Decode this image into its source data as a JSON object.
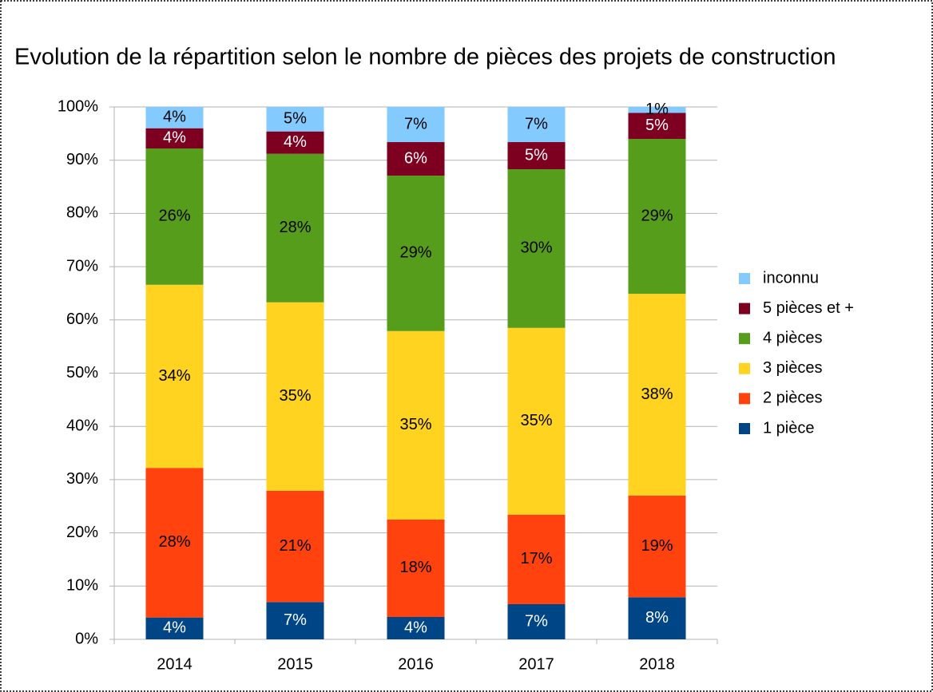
{
  "chart_data": {
    "type": "stacked_bar",
    "title": "Evolution de la répartition selon le nombre de pièces des projets de construction",
    "categories": [
      "2014",
      "2015",
      "2016",
      "2017",
      "2018"
    ],
    "series": [
      {
        "name": "1 pièce",
        "color": "#004586",
        "values": [
          4.1,
          7.0,
          4.2,
          6.6,
          7.9
        ],
        "value_labels": [
          "4%",
          "7%",
          "4%",
          "7%",
          "8%"
        ]
      },
      {
        "name": "2 pièces",
        "color": "#ff420e",
        "values": [
          28.1,
          20.9,
          18.3,
          16.8,
          19.1
        ],
        "value_labels": [
          "28%",
          "21%",
          "18%",
          "17%",
          "19%"
        ]
      },
      {
        "name": "3 pièces",
        "color": "#ffd320",
        "values": [
          34.4,
          35.4,
          35.4,
          35.1,
          37.9
        ],
        "value_labels": [
          "34%",
          "35%",
          "35%",
          "35%",
          "38%"
        ]
      },
      {
        "name": "4 pièces",
        "color": "#579d1c",
        "values": [
          25.6,
          27.9,
          29.2,
          29.8,
          29.1
        ],
        "value_labels": [
          "26%",
          "28%",
          "29%",
          "30%",
          "29%"
        ]
      },
      {
        "name": "5 pièces et +",
        "color": "#7e0021",
        "values": [
          3.8,
          4.2,
          6.3,
          5.1,
          4.9
        ],
        "value_labels": [
          "4%",
          "4%",
          "6%",
          "5%",
          "5%"
        ]
      },
      {
        "name": "inconnu",
        "color": "#83caff",
        "values": [
          4.0,
          4.6,
          6.6,
          6.6,
          1.1
        ],
        "value_labels": [
          "4%",
          "5%",
          "7%",
          "7%",
          "1%"
        ]
      }
    ],
    "ylim": [
      0,
      100
    ],
    "yticks": [
      {
        "value": 0,
        "label": "0%"
      },
      {
        "value": 10,
        "label": "10%"
      },
      {
        "value": 20,
        "label": "20%"
      },
      {
        "value": 30,
        "label": "30%"
      },
      {
        "value": 40,
        "label": "40%"
      },
      {
        "value": 50,
        "label": "50%"
      },
      {
        "value": 60,
        "label": "60%"
      },
      {
        "value": 70,
        "label": "70%"
      },
      {
        "value": 80,
        "label": "80%"
      },
      {
        "value": 90,
        "label": "90%"
      },
      {
        "value": 100,
        "label": "100%"
      }
    ],
    "grid": true,
    "legend": "right"
  }
}
